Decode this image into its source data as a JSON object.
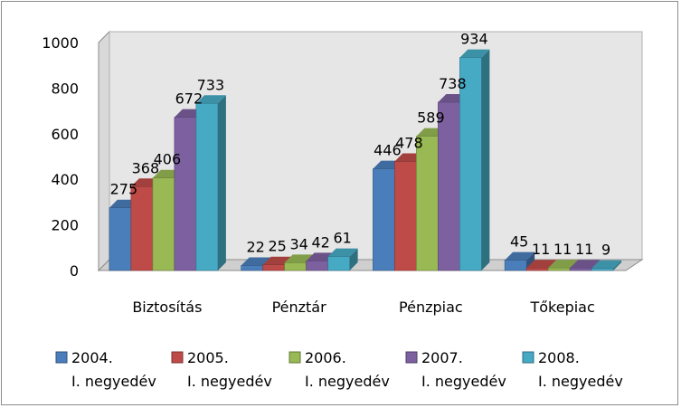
{
  "chart_data": {
    "type": "bar",
    "categories": [
      "Biztosítás",
      "Pénztár",
      "Pénzpiac",
      "Tőkepiac"
    ],
    "series": [
      {
        "name": "2004. I. negyedév",
        "line1": "2004.",
        "line2": "I. negyedév",
        "color": "#4a7ebb",
        "values": [
          275,
          22,
          446,
          45
        ]
      },
      {
        "name": "2005. I. negyedév",
        "line1": "2005.",
        "line2": "I. negyedév",
        "color": "#be4b48",
        "values": [
          368,
          25,
          478,
          11
        ]
      },
      {
        "name": "2006. I. negyedév",
        "line1": "2006.",
        "line2": "I. negyedév",
        "color": "#98b954",
        "values": [
          406,
          34,
          589,
          11
        ]
      },
      {
        "name": "2007. I. negyedév",
        "line1": "2007.",
        "line2": "I. negyedév",
        "color": "#7d60a0",
        "values": [
          672,
          42,
          738,
          11
        ]
      },
      {
        "name": "2008. I. negyedév",
        "line1": "2008.",
        "line2": "I. negyedév",
        "color": "#46aac5",
        "values": [
          733,
          61,
          934,
          9
        ]
      }
    ],
    "yticks": [
      "0",
      "200",
      "400",
      "600",
      "800",
      "1000"
    ],
    "ylim": [
      0,
      1000
    ],
    "grid": false,
    "legend": "bottom",
    "style": "3d-clustered-column"
  }
}
